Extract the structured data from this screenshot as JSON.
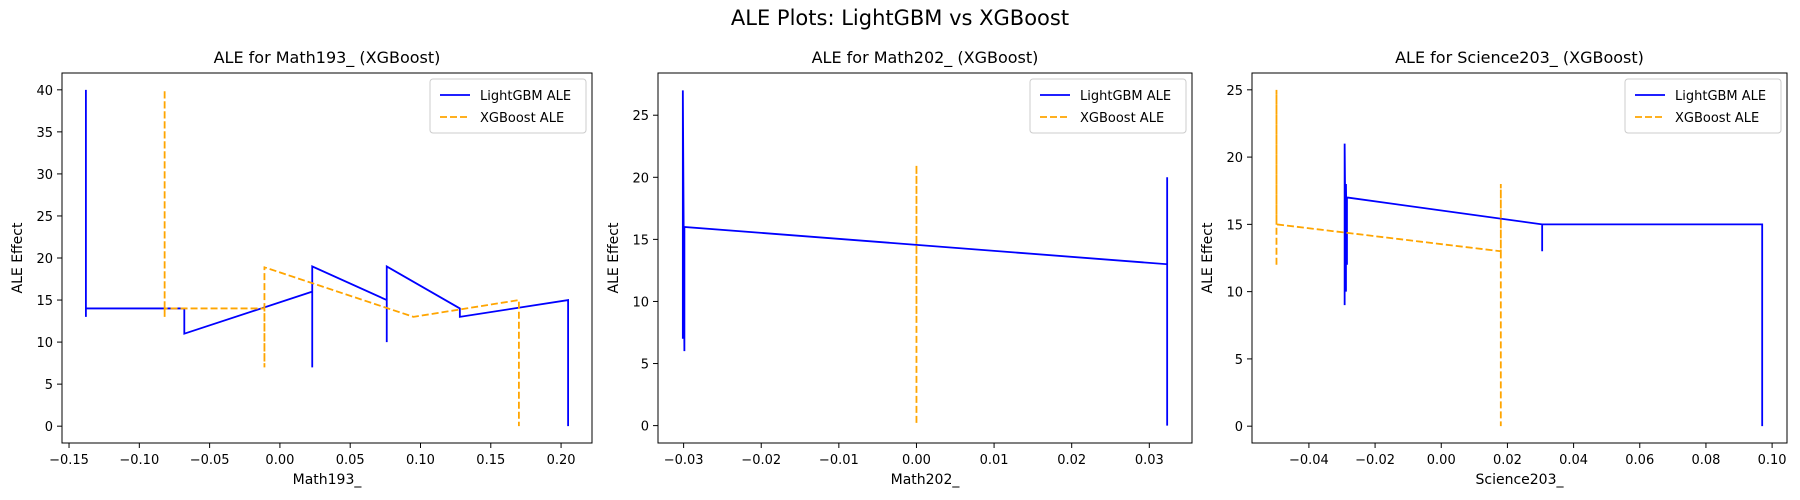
{
  "figure": {
    "title": "ALE Plots: LightGBM vs XGBoost"
  },
  "chart_data": [
    {
      "type": "line",
      "title": "ALE for Math193_ (XGBoost)",
      "xlabel": "Math193_",
      "ylabel": "ALE Effect",
      "xlim": [
        -0.155,
        0.222
      ],
      "ylim": [
        -2,
        42
      ],
      "xticks": [
        -0.15,
        -0.1,
        -0.05,
        0.0,
        0.05,
        0.1,
        0.15,
        0.2
      ],
      "xtick_labels": [
        "−0.15",
        "−0.10",
        "−0.05",
        "0.00",
        "0.05",
        "0.10",
        "0.15",
        "0.20"
      ],
      "yticks": [
        0,
        5,
        10,
        15,
        20,
        25,
        30,
        35,
        40
      ],
      "ytick_labels": [
        "0",
        "5",
        "10",
        "15",
        "20",
        "25",
        "30",
        "35",
        "40"
      ],
      "legend_position": "upper-right",
      "series": [
        {
          "name": "LightGBM ALE",
          "color": "#0000ff",
          "style": "solid",
          "x": [
            -0.138,
            -0.138,
            -0.138,
            -0.138,
            -0.068,
            -0.068,
            0.023,
            0.023,
            0.023,
            0.076,
            0.076,
            0.076,
            0.128,
            0.128,
            0.205,
            0.205
          ],
          "y": [
            15,
            40,
            13,
            14,
            14,
            11,
            16,
            7,
            19,
            15,
            10,
            19,
            14,
            13,
            15,
            0
          ]
        },
        {
          "name": "XGBoost ALE",
          "color": "#ffa500",
          "style": "dashed",
          "x": [
            -0.082,
            -0.082,
            -0.082,
            -0.082,
            -0.011,
            -0.011,
            -0.011,
            -0.011,
            0.095,
            0.17,
            0.17
          ],
          "y": [
            14,
            40,
            13,
            14,
            14,
            7,
            19,
            18.9,
            13,
            15,
            0
          ]
        }
      ]
    },
    {
      "type": "line",
      "title": "ALE for Math202_ (XGBoost)",
      "xlabel": "Math202_",
      "ylabel": "ALE Effect",
      "xlim": [
        -0.0333,
        0.0355
      ],
      "ylim": [
        -1.4,
        28.4
      ],
      "xticks": [
        -0.03,
        -0.02,
        -0.01,
        0.0,
        0.01,
        0.02,
        0.03
      ],
      "xtick_labels": [
        "−0.03",
        "−0.02",
        "−0.01",
        "0.00",
        "0.01",
        "0.02",
        "0.03"
      ],
      "yticks": [
        0,
        5,
        10,
        15,
        20,
        25
      ],
      "ytick_labels": [
        "0",
        "5",
        "10",
        "15",
        "20",
        "25"
      ],
      "legend_position": "upper-right",
      "series": [
        {
          "name": "LightGBM ALE",
          "color": "#0000ff",
          "style": "solid",
          "x": [
            -0.0301,
            -0.0301,
            -0.0299,
            -0.0299,
            0.0323,
            0.0323,
            0.0323
          ],
          "y": [
            7,
            27,
            6,
            16,
            13,
            20,
            0
          ]
        },
        {
          "name": "XGBoost ALE",
          "color": "#ffa500",
          "style": "dashed",
          "x": [
            0.0,
            0.0,
            0.0
          ],
          "y": [
            9,
            21,
            0
          ]
        }
      ]
    },
    {
      "type": "line",
      "title": "ALE for Science203_ (XGBoost)",
      "xlabel": "Science203_",
      "ylabel": "ALE Effect",
      "xlim": [
        -0.0572,
        0.1045
      ],
      "ylim": [
        -1.25,
        26.25
      ],
      "xticks": [
        -0.04,
        -0.02,
        0.0,
        0.02,
        0.04,
        0.06,
        0.08,
        0.1
      ],
      "xtick_labels": [
        "−0.04",
        "−0.02",
        "0.00",
        "0.02",
        "0.04",
        "0.06",
        "0.08",
        "0.10"
      ],
      "yticks": [
        0,
        5,
        10,
        15,
        20,
        25
      ],
      "ytick_labels": [
        "0",
        "5",
        "10",
        "15",
        "20",
        "25"
      ],
      "legend_position": "upper-right",
      "series": [
        {
          "name": "LightGBM ALE",
          "color": "#0000ff",
          "style": "solid",
          "x": [
            -0.0292,
            -0.0292,
            -0.0288,
            -0.0288,
            -0.0285,
            -0.0285,
            0.0305,
            0.0305,
            0.0305,
            0.097,
            0.097
          ],
          "y": [
            9,
            21,
            10,
            18,
            12,
            17,
            15,
            13,
            15,
            15,
            0
          ]
        },
        {
          "name": "XGBoost ALE",
          "color": "#ffa500",
          "style": "dashed",
          "x": [
            -0.0498,
            -0.0498,
            -0.0498,
            0.018,
            0.018,
            0.018
          ],
          "y": [
            12,
            25,
            15,
            13,
            18,
            0
          ]
        }
      ]
    }
  ]
}
